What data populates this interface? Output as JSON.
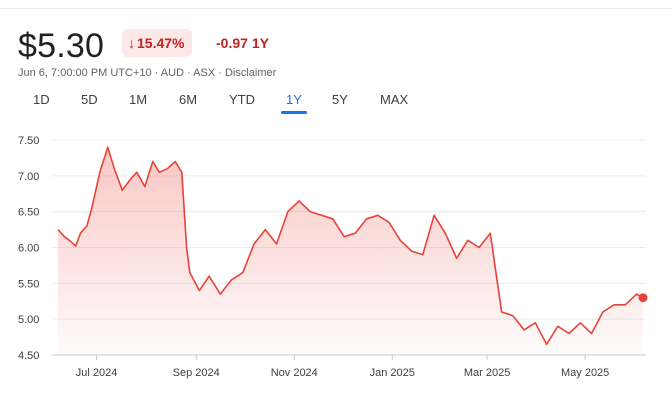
{
  "quote": {
    "price": "$5.30",
    "change_pct": "15.47%",
    "change_abs": "-0.97",
    "change_period": "1Y",
    "meta": "Jun 6, 7:00:00 PM UTC+10 · AUD · ASX · Disclaimer"
  },
  "icons": {
    "change_arrow": "arrow-down-icon"
  },
  "colors": {
    "negative": "#c5221f",
    "negative_bg": "#fce8e6",
    "line": "#e8433a",
    "accent": "#1a73e8"
  },
  "ranges": [
    "1D",
    "5D",
    "1M",
    "6M",
    "YTD",
    "1Y",
    "5Y",
    "MAX"
  ],
  "active_range": "1Y",
  "chart_data": {
    "type": "area",
    "grid": true,
    "ylim": [
      4.5,
      7.5
    ],
    "yticks": [
      "7.50",
      "7.00",
      "6.50",
      "6.00",
      "5.50",
      "5.00",
      "4.50"
    ],
    "xticks": [
      "Jul 2024",
      "Sep 2024",
      "Nov 2024",
      "Jan 2025",
      "Mar 2025",
      "May 2025"
    ],
    "x": [
      "2024-06-07",
      "2024-06-11",
      "2024-06-14",
      "2024-06-18",
      "2024-06-21",
      "2024-06-25",
      "2024-06-28",
      "2024-07-03",
      "2024-07-08",
      "2024-07-12",
      "2024-07-17",
      "2024-07-22",
      "2024-07-26",
      "2024-07-31",
      "2024-08-05",
      "2024-08-09",
      "2024-08-14",
      "2024-08-19",
      "2024-08-23",
      "2024-08-26",
      "2024-08-28",
      "2024-09-03",
      "2024-09-09",
      "2024-09-16",
      "2024-09-23",
      "2024-09-30",
      "2024-10-07",
      "2024-10-14",
      "2024-10-21",
      "2024-10-28",
      "2024-11-04",
      "2024-11-11",
      "2024-11-18",
      "2024-11-25",
      "2024-12-02",
      "2024-12-09",
      "2024-12-16",
      "2024-12-23",
      "2024-12-30",
      "2025-01-06",
      "2025-01-13",
      "2025-01-20",
      "2025-01-27",
      "2025-02-03",
      "2025-02-10",
      "2025-02-17",
      "2025-02-24",
      "2025-03-03",
      "2025-03-10",
      "2025-03-17",
      "2025-03-24",
      "2025-03-31",
      "2025-04-07",
      "2025-04-14",
      "2025-04-21",
      "2025-04-28",
      "2025-05-05",
      "2025-05-12",
      "2025-05-19",
      "2025-05-26",
      "2025-06-02",
      "2025-06-06"
    ],
    "series": [
      {
        "values": [
          6.25,
          6.15,
          6.1,
          6.02,
          6.2,
          6.3,
          6.55,
          7.05,
          7.4,
          7.1,
          6.8,
          6.95,
          7.05,
          6.85,
          7.2,
          7.05,
          7.1,
          7.2,
          7.05,
          6.0,
          5.65,
          5.4,
          5.6,
          5.35,
          5.55,
          5.65,
          6.05,
          6.25,
          6.05,
          6.5,
          6.65,
          6.5,
          6.45,
          6.4,
          6.15,
          6.2,
          6.4,
          6.45,
          6.35,
          6.1,
          5.95,
          5.9,
          6.45,
          6.2,
          5.85,
          6.1,
          6.0,
          6.2,
          5.1,
          5.05,
          4.85,
          4.95,
          4.65,
          4.9,
          4.8,
          4.95,
          4.8,
          5.1,
          5.2,
          5.2,
          5.35,
          5.3
        ]
      }
    ]
  }
}
